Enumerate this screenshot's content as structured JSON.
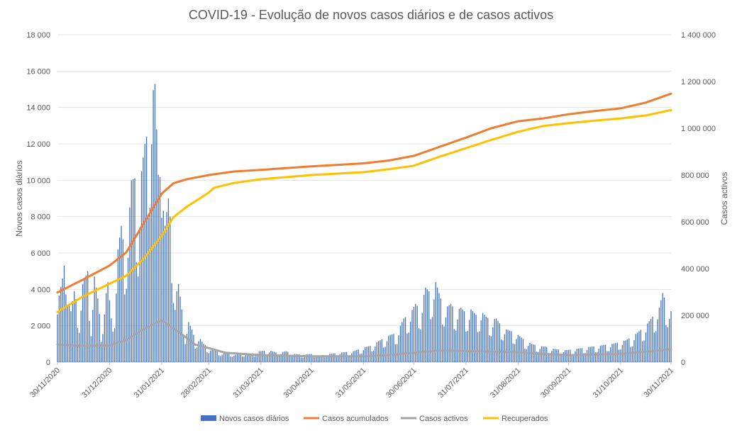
{
  "chart_data": {
    "type": "bar+line",
    "title": "COVID-19 - Evolução de novos casos diários e de casos activos",
    "ylabel_left": "Novos casos diários",
    "ylabel_right": "Casos activos",
    "ylim_left": [
      0,
      18000
    ],
    "yticks_left": [
      "0",
      "2 000",
      "4 000",
      "6 000",
      "8 000",
      "10 000",
      "12 000",
      "14 000",
      "16 000",
      "18 000"
    ],
    "ylim_right": [
      0,
      1400000
    ],
    "yticks_right": [
      "0",
      "200 000",
      "400 000",
      "600 000",
      "800 000",
      "1 000 000",
      "1 200 000",
      "1 400 000"
    ],
    "x_range": [
      "2020-11-30",
      "2021-11-30"
    ],
    "xticks": [
      {
        "date": "2020-11-30",
        "label": "30/11/2020"
      },
      {
        "date": "2020-12-31",
        "label": "31/12/2020"
      },
      {
        "date": "2021-01-31",
        "label": "31/01/2021"
      },
      {
        "date": "2021-02-28",
        "label": "28/02/2021"
      },
      {
        "date": "2021-03-31",
        "label": "31/03/2021"
      },
      {
        "date": "2021-04-30",
        "label": "30/04/2021"
      },
      {
        "date": "2021-05-31",
        "label": "31/05/2021"
      },
      {
        "date": "2021-06-30",
        "label": "30/06/2021"
      },
      {
        "date": "2021-07-31",
        "label": "31/07/2021"
      },
      {
        "date": "2021-08-31",
        "label": "31/08/2021"
      },
      {
        "date": "2021-09-30",
        "label": "30/09/2021"
      },
      {
        "date": "2021-10-31",
        "label": "31/10/2021"
      },
      {
        "date": "2021-11-30",
        "label": "30/11/2021"
      }
    ],
    "grid": true,
    "legend_position": "bottom",
    "daily_cases": {
      "name": "Novos casos diários",
      "axis": "left",
      "type": "bar",
      "color": "#4472C4",
      "points": [
        [
          "2020-11-30",
          3200
        ],
        [
          "2020-12-03",
          4600
        ],
        [
          "2020-12-05",
          6000
        ],
        [
          "2020-12-08",
          2800
        ],
        [
          "2020-12-10",
          3900
        ],
        [
          "2020-12-13",
          2600
        ],
        [
          "2020-12-15",
          4300
        ],
        [
          "2020-12-18",
          5000
        ],
        [
          "2020-12-20",
          2300
        ],
        [
          "2020-12-22",
          4700
        ],
        [
          "2020-12-24",
          3500
        ],
        [
          "2020-12-26",
          1800
        ],
        [
          "2020-12-28",
          3200
        ],
        [
          "2020-12-30",
          4400
        ],
        [
          "2021-01-01",
          2400
        ],
        [
          "2021-01-03",
          3000
        ],
        [
          "2021-01-05",
          6200
        ],
        [
          "2021-01-07",
          7500
        ],
        [
          "2021-01-09",
          6000
        ],
        [
          "2021-01-11",
          7000
        ],
        [
          "2021-01-13",
          10000
        ],
        [
          "2021-01-15",
          10100
        ],
        [
          "2021-01-17",
          7600
        ],
        [
          "2021-01-19",
          10500
        ],
        [
          "2021-01-21",
          12000
        ],
        [
          "2021-01-23",
          12800
        ],
        [
          "2021-01-25",
          14600
        ],
        [
          "2021-01-27",
          15300
        ],
        [
          "2021-01-29",
          10300
        ],
        [
          "2021-01-30",
          16400
        ],
        [
          "2021-01-31",
          12800
        ],
        [
          "2021-02-02",
          7500
        ],
        [
          "2021-02-04",
          9000
        ],
        [
          "2021-02-06",
          7000
        ],
        [
          "2021-02-08",
          3500
        ],
        [
          "2021-02-10",
          4300
        ],
        [
          "2021-02-12",
          2900
        ],
        [
          "2021-02-14",
          1600
        ],
        [
          "2021-02-16",
          2200
        ],
        [
          "2021-02-18",
          1800
        ],
        [
          "2021-02-20",
          1200
        ],
        [
          "2021-02-22",
          1400
        ],
        [
          "2021-02-25",
          1000
        ],
        [
          "2021-02-28",
          800
        ],
        [
          "2021-03-04",
          700
        ],
        [
          "2021-03-08",
          500
        ],
        [
          "2021-03-12",
          550
        ],
        [
          "2021-03-16",
          400
        ],
        [
          "2021-03-20",
          500
        ],
        [
          "2021-03-25",
          450
        ],
        [
          "2021-03-30",
          600
        ],
        [
          "2021-04-05",
          650
        ],
        [
          "2021-04-10",
          500
        ],
        [
          "2021-04-15",
          600
        ],
        [
          "2021-04-20",
          450
        ],
        [
          "2021-04-25",
          400
        ],
        [
          "2021-04-30",
          450
        ],
        [
          "2021-05-05",
          350
        ],
        [
          "2021-05-10",
          450
        ],
        [
          "2021-05-15",
          500
        ],
        [
          "2021-05-20",
          550
        ],
        [
          "2021-05-25",
          600
        ],
        [
          "2021-05-31",
          800
        ],
        [
          "2021-06-04",
          900
        ],
        [
          "2021-06-08",
          1100
        ],
        [
          "2021-06-12",
          1300
        ],
        [
          "2021-06-16",
          1500
        ],
        [
          "2021-06-20",
          1600
        ],
        [
          "2021-06-24",
          2400
        ],
        [
          "2021-06-28",
          2700
        ],
        [
          "2021-07-01",
          3200
        ],
        [
          "2021-07-04",
          2900
        ],
        [
          "2021-07-07",
          4100
        ],
        [
          "2021-07-10",
          3800
        ],
        [
          "2021-07-13",
          4400
        ],
        [
          "2021-07-16",
          3500
        ],
        [
          "2021-07-19",
          3000
        ],
        [
          "2021-07-22",
          3200
        ],
        [
          "2021-07-25",
          2800
        ],
        [
          "2021-07-28",
          3000
        ],
        [
          "2021-07-31",
          2700
        ],
        [
          "2021-08-03",
          2900
        ],
        [
          "2021-08-06",
          2600
        ],
        [
          "2021-08-09",
          2800
        ],
        [
          "2021-08-12",
          2500
        ],
        [
          "2021-08-15",
          2300
        ],
        [
          "2021-08-18",
          2400
        ],
        [
          "2021-08-21",
          2000
        ],
        [
          "2021-08-24",
          1800
        ],
        [
          "2021-08-27",
          1700
        ],
        [
          "2021-08-31",
          1500
        ],
        [
          "2021-09-04",
          1200
        ],
        [
          "2021-09-08",
          1000
        ],
        [
          "2021-09-12",
          900
        ],
        [
          "2021-09-16",
          850
        ],
        [
          "2021-09-20",
          750
        ],
        [
          "2021-09-24",
          700
        ],
        [
          "2021-09-28",
          650
        ],
        [
          "2021-10-02",
          700
        ],
        [
          "2021-10-06",
          750
        ],
        [
          "2021-10-10",
          800
        ],
        [
          "2021-10-14",
          850
        ],
        [
          "2021-10-18",
          900
        ],
        [
          "2021-10-22",
          950
        ],
        [
          "2021-10-26",
          1000
        ],
        [
          "2021-10-30",
          1100
        ],
        [
          "2021-11-03",
          1200
        ],
        [
          "2021-11-07",
          1400
        ],
        [
          "2021-11-11",
          1700
        ],
        [
          "2021-11-15",
          2000
        ],
        [
          "2021-11-19",
          2500
        ],
        [
          "2021-11-23",
          3000
        ],
        [
          "2021-11-25",
          3800
        ],
        [
          "2021-11-27",
          3300
        ],
        [
          "2021-11-29",
          2900
        ],
        [
          "2021-11-30",
          2800
        ]
      ]
    },
    "series": [
      {
        "name": "Casos acumulados",
        "axis": "right",
        "type": "line",
        "color": "#ED7D31",
        "points": [
          [
            "2020-11-30",
            298000
          ],
          [
            "2020-12-15",
            352000
          ],
          [
            "2020-12-31",
            413000
          ],
          [
            "2021-01-10",
            470000
          ],
          [
            "2021-01-20",
            590000
          ],
          [
            "2021-01-31",
            720000
          ],
          [
            "2021-02-07",
            765000
          ],
          [
            "2021-02-15",
            782000
          ],
          [
            "2021-02-28",
            800000
          ],
          [
            "2021-03-15",
            815000
          ],
          [
            "2021-03-31",
            822000
          ],
          [
            "2021-04-30",
            837000
          ],
          [
            "2021-05-31",
            850000
          ],
          [
            "2021-06-15",
            862000
          ],
          [
            "2021-06-30",
            882000
          ],
          [
            "2021-07-15",
            920000
          ],
          [
            "2021-07-31",
            960000
          ],
          [
            "2021-08-15",
            1000000
          ],
          [
            "2021-08-31",
            1030000
          ],
          [
            "2021-09-15",
            1042000
          ],
          [
            "2021-09-30",
            1060000
          ],
          [
            "2021-10-15",
            1073000
          ],
          [
            "2021-10-31",
            1085000
          ],
          [
            "2021-11-15",
            1110000
          ],
          [
            "2021-11-30",
            1148000
          ]
        ]
      },
      {
        "name": "Casos activos",
        "axis": "right",
        "type": "line",
        "color": "#A5A5A5",
        "points": [
          [
            "2020-11-30",
            75000
          ],
          [
            "2020-12-15",
            70000
          ],
          [
            "2020-12-31",
            72000
          ],
          [
            "2021-01-10",
            95000
          ],
          [
            "2021-01-20",
            140000
          ],
          [
            "2021-01-31",
            180000
          ],
          [
            "2021-02-10",
            130000
          ],
          [
            "2021-02-20",
            75000
          ],
          [
            "2021-02-28",
            60000
          ],
          [
            "2021-03-10",
            40000
          ],
          [
            "2021-03-31",
            30000
          ],
          [
            "2021-04-30",
            25000
          ],
          [
            "2021-05-31",
            25000
          ],
          [
            "2021-06-15",
            30000
          ],
          [
            "2021-06-30",
            40000
          ],
          [
            "2021-07-15",
            50000
          ],
          [
            "2021-07-31",
            48000
          ],
          [
            "2021-08-15",
            45000
          ],
          [
            "2021-08-31",
            42000
          ],
          [
            "2021-09-15",
            35000
          ],
          [
            "2021-09-30",
            30000
          ],
          [
            "2021-10-15",
            32000
          ],
          [
            "2021-10-31",
            35000
          ],
          [
            "2021-11-15",
            45000
          ],
          [
            "2021-11-30",
            55000
          ]
        ]
      },
      {
        "name": "Recuperados",
        "axis": "right",
        "type": "line",
        "color": "#FFC000",
        "points": [
          [
            "2020-11-30",
            215000
          ],
          [
            "2020-12-15",
            280000
          ],
          [
            "2020-12-31",
            335000
          ],
          [
            "2021-01-10",
            370000
          ],
          [
            "2021-01-20",
            440000
          ],
          [
            "2021-01-31",
            540000
          ],
          [
            "2021-02-07",
            620000
          ],
          [
            "2021-02-15",
            665000
          ],
          [
            "2021-02-28",
            725000
          ],
          [
            "2021-03-03",
            745000
          ],
          [
            "2021-03-15",
            766000
          ],
          [
            "2021-03-31",
            782000
          ],
          [
            "2021-04-30",
            800000
          ],
          [
            "2021-05-31",
            812000
          ],
          [
            "2021-06-15",
            825000
          ],
          [
            "2021-06-30",
            840000
          ],
          [
            "2021-07-15",
            878000
          ],
          [
            "2021-07-31",
            915000
          ],
          [
            "2021-08-15",
            950000
          ],
          [
            "2021-08-31",
            985000
          ],
          [
            "2021-09-15",
            1010000
          ],
          [
            "2021-09-30",
            1022000
          ],
          [
            "2021-10-15",
            1032000
          ],
          [
            "2021-10-31",
            1042000
          ],
          [
            "2021-11-15",
            1055000
          ],
          [
            "2021-11-30",
            1078000
          ]
        ]
      }
    ]
  }
}
